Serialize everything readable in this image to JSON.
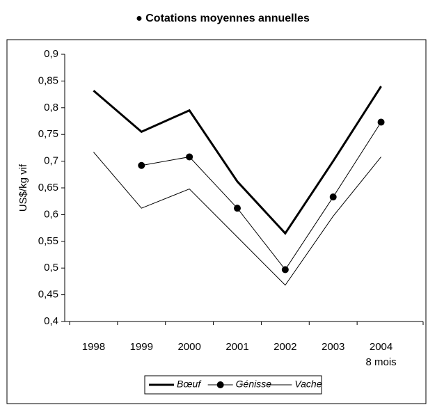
{
  "chart_data": {
    "type": "line",
    "title": "● Cotations moyennes annuelles",
    "y_label": "US$/kg vif",
    "categories": [
      "1998",
      "1999",
      "2000",
      "2001",
      "2002",
      "2003",
      "2004"
    ],
    "x_note": "8 mois",
    "series": [
      {
        "name": "Bœuf",
        "color": "#000000",
        "line_width": 3,
        "marker": "none",
        "values": [
          0.832,
          0.755,
          0.795,
          0.662,
          0.565,
          0.7,
          0.84
        ]
      },
      {
        "name": "Génisse",
        "color": "#000000",
        "line_width": 1,
        "marker": "circle",
        "values": [
          null,
          0.692,
          0.708,
          0.612,
          0.497,
          0.633,
          0.773
        ]
      },
      {
        "name": "Vache",
        "color": "#000000",
        "line_width": 1,
        "marker": "none",
        "values": [
          0.717,
          0.612,
          0.648,
          0.558,
          0.468,
          0.597,
          0.708
        ]
      }
    ],
    "ylim": [
      0.4,
      0.9
    ],
    "yticks": [
      {
        "value": 0.4,
        "label": "0,4"
      },
      {
        "value": 0.45,
        "label": "0,45"
      },
      {
        "value": 0.5,
        "label": "0,5"
      },
      {
        "value": 0.55,
        "label": "0,55"
      },
      {
        "value": 0.6,
        "label": "0,6"
      },
      {
        "value": 0.65,
        "label": "0,65"
      },
      {
        "value": 0.7,
        "label": "0,7"
      },
      {
        "value": 0.75,
        "label": "0,75"
      },
      {
        "value": 0.8,
        "label": "0,8"
      },
      {
        "value": 0.85,
        "label": "0,85"
      },
      {
        "value": 0.9,
        "label": "0,9"
      }
    ],
    "legend": "bottom"
  }
}
